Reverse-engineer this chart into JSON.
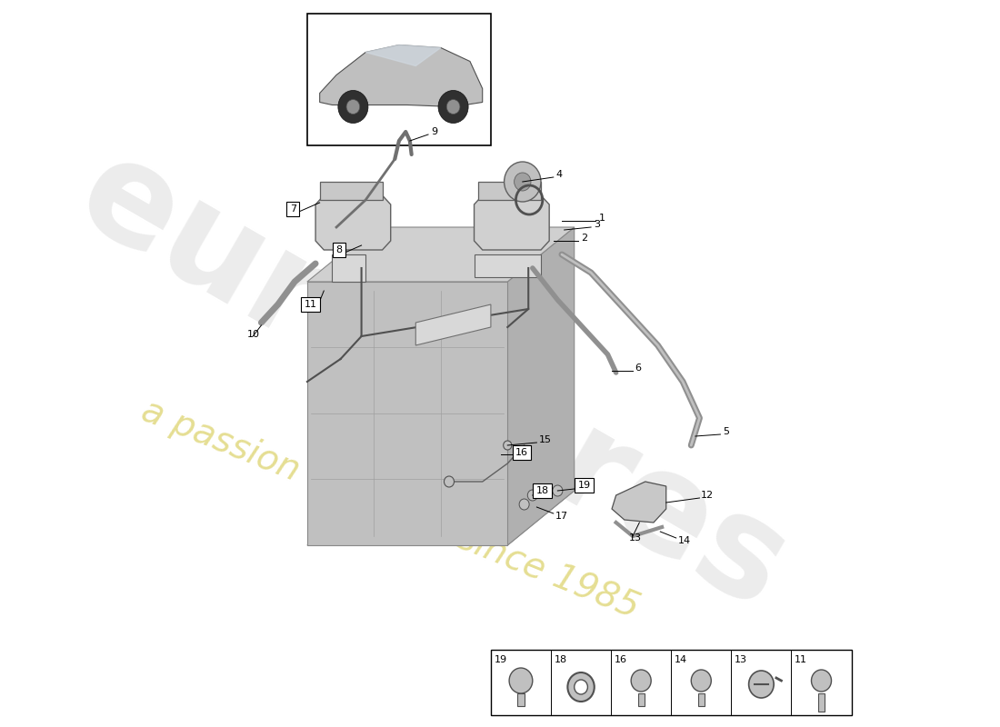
{
  "bg_color": "#ffffff",
  "watermark_text1": "euroPares",
  "watermark_text2": "a passion for parts since 1985",
  "boxed_labels": [
    "7",
    "8",
    "11",
    "16",
    "18",
    "19"
  ],
  "bottom_nums": [
    "19",
    "18",
    "16",
    "14",
    "13",
    "11"
  ]
}
